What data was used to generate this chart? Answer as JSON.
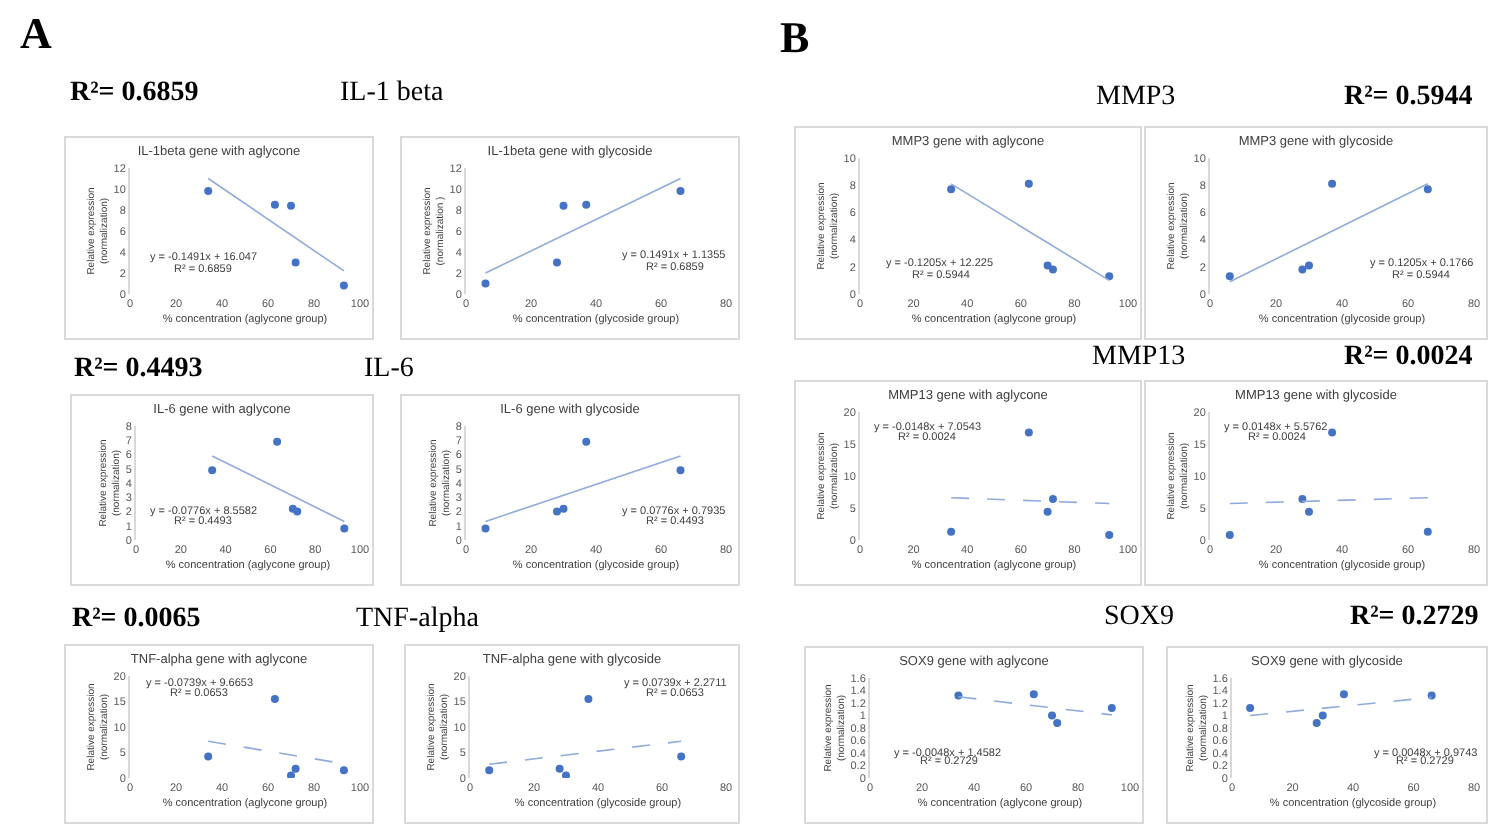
{
  "chart_data": [
    {
      "type": "scatter",
      "title": "IL-1beta gene with aglycone",
      "xlabel": "% concentration (aglycone group)",
      "ylabel": "Relative expression\n(normalization)",
      "xlim": [
        0,
        100
      ],
      "xticks": [
        0,
        20,
        40,
        60,
        80,
        100
      ],
      "ylim": [
        0,
        12
      ],
      "yticks": [
        0,
        2,
        4,
        6,
        8,
        10,
        12
      ],
      "grid": false,
      "series": [
        {
          "type": "scatter",
          "marker": "circle",
          "color": "#4472c4",
          "x": [
            34,
            63,
            70,
            72,
            93
          ],
          "values": [
            9.8,
            8.5,
            8.4,
            3.0,
            0.8
          ]
        },
        {
          "type": "line",
          "line_style": "solid",
          "color": "#8faadc",
          "x": [
            34,
            93
          ],
          "values": [
            11.0,
            2.2
          ]
        }
      ],
      "annotations": [
        "y = -0.1491x + 16.047",
        "R² = 0.6859",
        "A",
        "R²= 0.6859",
        "IL-1 beta"
      ]
    },
    {
      "type": "scatter",
      "title": "IL-1beta gene with glycoside",
      "xlabel": "% concentration (glycoside group)",
      "ylabel": "Relative expression\n(normalization )",
      "xlim": [
        0,
        80
      ],
      "xticks": [
        0,
        20,
        40,
        60,
        80
      ],
      "ylim": [
        0,
        12
      ],
      "yticks": [
        0,
        2,
        4,
        6,
        8,
        10,
        12
      ],
      "grid": false,
      "series": [
        {
          "type": "scatter",
          "marker": "circle",
          "color": "#4472c4",
          "x": [
            6,
            28,
            30,
            37,
            66
          ],
          "values": [
            1.0,
            3.0,
            8.4,
            8.5,
            9.8
          ]
        },
        {
          "type": "line",
          "line_style": "solid",
          "color": "#8faadc",
          "x": [
            6,
            66
          ],
          "values": [
            2.0,
            11.0
          ]
        }
      ],
      "annotations": [
        "y = 0.1491x + 1.1355",
        "R² = 0.6859"
      ]
    },
    {
      "type": "scatter",
      "title": "IL-6 gene with aglycone",
      "xlabel": "% concentration (aglycone group)",
      "ylabel": "Relative expression\n(normalization)",
      "xlim": [
        0,
        100
      ],
      "xticks": [
        0,
        20,
        40,
        60,
        80,
        100
      ],
      "ylim": [
        0,
        8
      ],
      "yticks": [
        0,
        1,
        2,
        3,
        4,
        5,
        6,
        7,
        8
      ],
      "grid": false,
      "series": [
        {
          "type": "scatter",
          "marker": "circle",
          "color": "#4472c4",
          "x": [
            34,
            63,
            70,
            72,
            93
          ],
          "values": [
            4.9,
            6.9,
            2.2,
            2.0,
            0.8
          ]
        },
        {
          "type": "line",
          "line_style": "solid",
          "color": "#8faadc",
          "x": [
            34,
            93
          ],
          "values": [
            5.9,
            1.3
          ]
        }
      ],
      "annotations": [
        "y = -0.0776x + 8.5582",
        "R² = 0.4493",
        "R²= 0.4493",
        "IL-6"
      ]
    },
    {
      "type": "scatter",
      "title": "IL-6 gene with glycoside",
      "xlabel": "% concentration (glycoside group)",
      "ylabel": "Relative expression\n(normalization)",
      "xlim": [
        0,
        80
      ],
      "xticks": [
        0,
        20,
        40,
        60,
        80
      ],
      "ylim": [
        0,
        8
      ],
      "yticks": [
        0,
        1,
        2,
        3,
        4,
        5,
        6,
        7,
        8
      ],
      "grid": false,
      "series": [
        {
          "type": "scatter",
          "marker": "circle",
          "color": "#4472c4",
          "x": [
            6,
            28,
            30,
            37,
            66
          ],
          "values": [
            0.8,
            2.0,
            2.2,
            6.9,
            4.9
          ]
        },
        {
          "type": "line",
          "line_style": "solid",
          "color": "#8faadc",
          "x": [
            6,
            66
          ],
          "values": [
            1.3,
            5.9
          ]
        }
      ],
      "annotations": [
        "y = 0.0776x + 0.7935",
        "R² = 0.4493"
      ]
    },
    {
      "type": "scatter",
      "title": "TNF-alpha gene with aglycone",
      "xlabel": "% concentration (aglycone group)",
      "ylabel": "Relative expression\n(normalization)",
      "xlim": [
        0,
        100
      ],
      "xticks": [
        0,
        20,
        40,
        60,
        80,
        100
      ],
      "ylim": [
        0,
        20
      ],
      "yticks": [
        0,
        5,
        10,
        15,
        20
      ],
      "grid": false,
      "series": [
        {
          "type": "scatter",
          "marker": "circle",
          "color": "#4472c4",
          "x": [
            34,
            63,
            70,
            72,
            93
          ],
          "values": [
            4.2,
            15.5,
            0.5,
            1.8,
            1.5
          ]
        },
        {
          "type": "line",
          "line_style": "dashed",
          "color": "#8faadc",
          "x": [
            34,
            93
          ],
          "values": [
            7.2,
            2.8
          ]
        }
      ],
      "annotations": [
        "y = -0.0739x + 9.6653",
        "R² = 0.0653",
        "R²= 0.0065",
        "TNF-alpha"
      ]
    },
    {
      "type": "scatter",
      "title": "TNF-alpha gene with glycoside",
      "xlabel": "% concentration (glycoside group)",
      "ylabel": "Relative expression\n(normalization)",
      "xlim": [
        0,
        80
      ],
      "xticks": [
        0,
        20,
        40,
        60,
        80
      ],
      "ylim": [
        0,
        20
      ],
      "yticks": [
        0,
        5,
        10,
        15,
        20
      ],
      "grid": false,
      "series": [
        {
          "type": "scatter",
          "marker": "circle",
          "color": "#4472c4",
          "x": [
            6,
            28,
            30,
            37,
            66
          ],
          "values": [
            1.5,
            1.8,
            0.5,
            15.5,
            4.2
          ]
        },
        {
          "type": "line",
          "line_style": "dashed",
          "color": "#8faadc",
          "x": [
            6,
            66
          ],
          "values": [
            2.7,
            7.2
          ]
        }
      ],
      "annotations": [
        "y = 0.0739x + 2.2711",
        "R² = 0.0653"
      ]
    },
    {
      "type": "scatter",
      "title": "MMP3 gene with aglycone",
      "xlabel": "% concentration (aglycone group)",
      "ylabel": "Relative expression\n(normalization)",
      "xlim": [
        0,
        100
      ],
      "xticks": [
        0,
        20,
        40,
        60,
        80,
        100
      ],
      "ylim": [
        0,
        10
      ],
      "yticks": [
        0,
        2,
        4,
        6,
        8,
        10
      ],
      "grid": false,
      "series": [
        {
          "type": "scatter",
          "marker": "circle",
          "color": "#4472c4",
          "x": [
            34,
            63,
            70,
            72,
            93
          ],
          "values": [
            7.7,
            8.1,
            2.1,
            1.8,
            1.3
          ]
        },
        {
          "type": "line",
          "line_style": "solid",
          "color": "#8faadc",
          "x": [
            34,
            93
          ],
          "values": [
            8.1,
            1.0
          ]
        }
      ],
      "annotations": [
        "y = -0.1205x + 12.225",
        "R² = 0.5944",
        "B",
        "MMP3",
        "R²= 0.5944"
      ]
    },
    {
      "type": "scatter",
      "title": "MMP3 gene with glycoside",
      "xlabel": "% concentration (glycoside group)",
      "ylabel": "Relative expression\n(normalization)",
      "xlim": [
        0,
        80
      ],
      "xticks": [
        0,
        20,
        40,
        60,
        80
      ],
      "ylim": [
        0,
        10
      ],
      "yticks": [
        0,
        2,
        4,
        6,
        8,
        10
      ],
      "grid": false,
      "series": [
        {
          "type": "scatter",
          "marker": "circle",
          "color": "#4472c4",
          "x": [
            6,
            28,
            30,
            37,
            66
          ],
          "values": [
            1.3,
            1.8,
            2.1,
            8.1,
            7.7
          ]
        },
        {
          "type": "line",
          "line_style": "solid",
          "color": "#8faadc",
          "x": [
            6,
            66
          ],
          "values": [
            0.9,
            8.1
          ]
        }
      ],
      "annotations": [
        "y = 0.1205x + 0.1766",
        "R² = 0.5944"
      ]
    },
    {
      "type": "scatter",
      "title": "MMP13 gene with aglycone",
      "xlabel": "% concentration (aglycone group)",
      "ylabel": "Relative expression\n(normalization)",
      "xlim": [
        0,
        100
      ],
      "xticks": [
        0,
        20,
        40,
        60,
        80,
        100
      ],
      "ylim": [
        0,
        20
      ],
      "yticks": [
        0,
        5,
        10,
        15,
        20
      ],
      "grid": false,
      "series": [
        {
          "type": "scatter",
          "marker": "circle",
          "color": "#4472c4",
          "x": [
            34,
            63,
            70,
            72,
            93
          ],
          "values": [
            1.3,
            16.8,
            4.4,
            6.4,
            0.8
          ]
        },
        {
          "type": "line",
          "line_style": "dashed",
          "color": "#8faadc",
          "x": [
            34,
            93
          ],
          "values": [
            6.6,
            5.7
          ]
        }
      ],
      "annotations": [
        "y = -0.0148x + 7.0543",
        "R² = 0.0024",
        "MMP13",
        "R²= 0.0024"
      ]
    },
    {
      "type": "scatter",
      "title": "MMP13 gene with glycoside",
      "xlabel": "% concentration (glycoside group)",
      "ylabel": "Relative expression\n(normalization)",
      "xlim": [
        0,
        80
      ],
      "xticks": [
        0,
        20,
        40,
        60,
        80
      ],
      "ylim": [
        0,
        20
      ],
      "yticks": [
        0,
        5,
        10,
        15,
        20
      ],
      "grid": false,
      "series": [
        {
          "type": "scatter",
          "marker": "circle",
          "color": "#4472c4",
          "x": [
            6,
            28,
            30,
            37,
            66
          ],
          "values": [
            0.8,
            6.4,
            4.4,
            16.8,
            1.3
          ]
        },
        {
          "type": "line",
          "line_style": "dashed",
          "color": "#8faadc",
          "x": [
            6,
            66
          ],
          "values": [
            5.7,
            6.6
          ]
        }
      ],
      "annotations": [
        "y = 0.0148x + 5.5762",
        "R² = 0.0024"
      ]
    },
    {
      "type": "scatter",
      "title": "SOX9 gene with aglycone",
      "xlabel": "% concentration (aglycone group)",
      "ylabel": "Relative expression\n(normalization)",
      "xlim": [
        0,
        100
      ],
      "xticks": [
        0,
        20,
        40,
        60,
        80,
        100
      ],
      "ylim": [
        0,
        1.6
      ],
      "yticks": [
        0,
        0.2,
        0.4,
        0.6,
        0.8,
        1,
        1.2,
        1.4,
        1.6
      ],
      "grid": false,
      "series": [
        {
          "type": "scatter",
          "marker": "circle",
          "color": "#4472c4",
          "x": [
            34,
            63,
            70,
            72,
            93
          ],
          "values": [
            1.32,
            1.34,
            1.0,
            0.88,
            1.12
          ]
        },
        {
          "type": "line",
          "line_style": "dashed",
          "color": "#8faadc",
          "x": [
            34,
            93
          ],
          "values": [
            1.3,
            1.01
          ]
        }
      ],
      "annotations": [
        "y = -0.0048x + 1.4582",
        "R² = 0.2729",
        "SOX9",
        "R²= 0.2729"
      ]
    },
    {
      "type": "scatter",
      "title": "SOX9 gene with glycoside",
      "xlabel": "% concentration (glycoside group)",
      "ylabel": "Relative expression\n(normalization)",
      "xlim": [
        0,
        80
      ],
      "xticks": [
        0,
        20,
        40,
        60,
        80
      ],
      "ylim": [
        0,
        1.6
      ],
      "yticks": [
        0,
        0.2,
        0.4,
        0.6,
        0.8,
        1,
        1.2,
        1.4,
        1.6
      ],
      "grid": false,
      "series": [
        {
          "type": "scatter",
          "marker": "circle",
          "color": "#4472c4",
          "x": [
            6,
            28,
            30,
            37,
            66
          ],
          "values": [
            1.12,
            0.88,
            1.0,
            1.34,
            1.32
          ]
        },
        {
          "type": "line",
          "line_style": "dashed",
          "color": "#8faadc",
          "x": [
            6,
            66
          ],
          "values": [
            1.0,
            1.29
          ]
        }
      ],
      "annotations": [
        "y = 0.0048x + 0.9743",
        "R² = 0.2729"
      ]
    }
  ]
}
